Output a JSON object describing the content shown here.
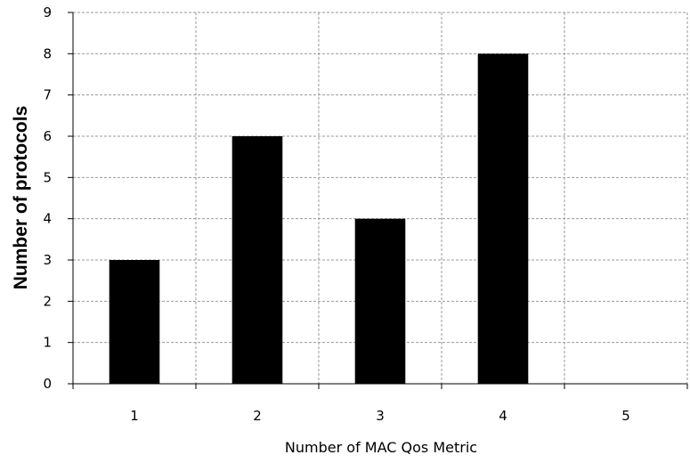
{
  "chart_data": {
    "type": "bar",
    "categories": [
      "1",
      "2",
      "3",
      "4",
      "5"
    ],
    "values": [
      3,
      6,
      4,
      8,
      0
    ],
    "title": "",
    "xlabel": "Number of MAC Qos Metric",
    "ylabel": "Number of protocols",
    "ylim": [
      0,
      9
    ],
    "yticks": [
      "0",
      "1",
      "2",
      "3",
      "4",
      "5",
      "6",
      "7",
      "8",
      "9"
    ],
    "grid": true,
    "grid_style": "dashed",
    "legend": "none",
    "colors": {
      "bar": "#000000",
      "grid": "#9a9a9a",
      "axis": "#000000",
      "background": "#ffffff"
    }
  }
}
